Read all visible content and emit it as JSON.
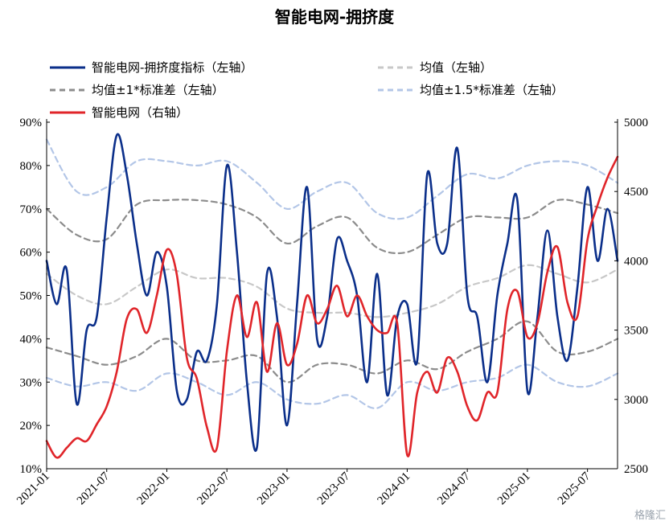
{
  "chart_data": {
    "type": "line",
    "title": "智能电网-拥挤度",
    "y_left": {
      "ticks": [
        "10%",
        "20%",
        "30%",
        "40%",
        "50%",
        "60%",
        "70%",
        "80%",
        "90%"
      ],
      "range": [
        10,
        90
      ]
    },
    "y_right": {
      "ticks": [
        "2500",
        "3000",
        "3500",
        "4000",
        "4500",
        "5000"
      ],
      "range": [
        2500,
        5000
      ]
    },
    "x_axis": {
      "ticks": [
        "2021-01",
        "2021-07",
        "2022-01",
        "2022-07",
        "2023-01",
        "2023-07",
        "2024-01",
        "2024-07",
        "2025-01",
        "2025-07"
      ],
      "start": "2021-01",
      "end": "2025-10"
    },
    "legend": [
      {
        "label": "智能电网-拥挤度指标（左轴）",
        "color": "#0b2f8a",
        "style": "solid"
      },
      {
        "label": "均值（左轴）",
        "color": "#c8c8c8",
        "style": "dashed"
      },
      {
        "label": "均值±1*标准差（左轴）",
        "color": "#8c8c8c",
        "style": "dashed"
      },
      {
        "label": "均值±1.5*标准差（左轴）",
        "color": "#b3c6e7",
        "style": "dashed"
      },
      {
        "label": "智能电网（右轴）",
        "color": "#e0252a",
        "style": "solid"
      }
    ],
    "series": [
      {
        "name": "智能电网-拥挤度指标（左轴）",
        "axis": "left",
        "color": "#0b2f8a",
        "x": [
          "2021-01",
          "2021-02",
          "2021-03",
          "2021-04",
          "2021-05",
          "2021-06",
          "2021-07",
          "2021-08",
          "2021-09",
          "2021-10",
          "2021-11",
          "2021-12",
          "2022-01",
          "2022-02",
          "2022-03",
          "2022-04",
          "2022-05",
          "2022-06",
          "2022-07",
          "2022-08",
          "2022-09",
          "2022-10",
          "2022-11",
          "2022-12",
          "2023-01",
          "2023-02",
          "2023-03",
          "2023-04",
          "2023-05",
          "2023-06",
          "2023-07",
          "2023-08",
          "2023-09",
          "2023-10",
          "2023-11",
          "2023-12",
          "2024-01",
          "2024-02",
          "2024-03",
          "2024-04",
          "2024-05",
          "2024-06",
          "2024-07",
          "2024-08",
          "2024-09",
          "2024-10",
          "2024-11",
          "2024-12",
          "2025-01",
          "2025-02",
          "2025-03",
          "2025-04",
          "2025-05",
          "2025-06",
          "2025-07",
          "2025-08",
          "2025-09",
          "2025-10"
        ],
        "values": [
          58,
          48,
          56,
          25,
          42,
          45,
          68,
          87,
          78,
          62,
          50,
          60,
          52,
          28,
          26,
          37,
          35,
          48,
          80,
          60,
          30,
          15,
          55,
          45,
          20,
          48,
          75,
          40,
          45,
          63,
          58,
          50,
          30,
          55,
          27,
          45,
          48,
          35,
          78,
          62,
          62,
          84,
          50,
          45,
          30,
          50,
          62,
          72,
          28,
          45,
          65,
          45,
          35,
          52,
          75,
          58,
          70,
          58
        ]
      },
      {
        "name": "均值（左轴）",
        "axis": "left",
        "color": "#c8c8c8",
        "x": [
          "2021-01",
          "2021-04",
          "2021-07",
          "2021-10",
          "2022-01",
          "2022-04",
          "2022-07",
          "2022-10",
          "2023-01",
          "2023-04",
          "2023-07",
          "2023-10",
          "2024-01",
          "2024-04",
          "2024-07",
          "2024-10",
          "2025-01",
          "2025-04",
          "2025-07",
          "2025-10"
        ],
        "values": [
          55,
          50,
          48,
          52,
          56,
          54,
          54,
          52,
          47,
          46,
          46,
          45,
          46,
          48,
          52,
          54,
          57,
          55,
          53,
          56
        ]
      },
      {
        "name": "均值+1*标准差（左轴）",
        "axis": "left",
        "color": "#8c8c8c",
        "x": [
          "2021-01",
          "2021-04",
          "2021-07",
          "2021-10",
          "2022-01",
          "2022-04",
          "2022-07",
          "2022-10",
          "2023-01",
          "2023-04",
          "2023-07",
          "2023-10",
          "2024-01",
          "2024-04",
          "2024-07",
          "2024-10",
          "2025-01",
          "2025-04",
          "2025-07",
          "2025-10"
        ],
        "values": [
          70,
          64,
          63,
          71,
          72,
          72,
          71,
          68,
          62,
          66,
          68,
          61,
          60,
          64,
          68,
          68,
          68,
          72,
          71,
          69
        ]
      },
      {
        "name": "均值-1*标准差（左轴）",
        "axis": "left",
        "color": "#8c8c8c",
        "x": [
          "2021-01",
          "2021-04",
          "2021-07",
          "2021-10",
          "2022-01",
          "2022-04",
          "2022-07",
          "2022-10",
          "2023-01",
          "2023-04",
          "2023-07",
          "2023-10",
          "2024-01",
          "2024-04",
          "2024-07",
          "2024-10",
          "2025-01",
          "2025-04",
          "2025-07",
          "2025-10"
        ],
        "values": [
          38,
          36,
          34,
          36,
          40,
          35,
          35,
          36,
          30,
          34,
          34,
          32,
          35,
          33,
          37,
          40,
          44,
          37,
          37,
          40
        ]
      },
      {
        "name": "均值+1.5*标准差（左轴）",
        "axis": "left",
        "color": "#b3c6e7",
        "x": [
          "2021-01",
          "2021-04",
          "2021-07",
          "2021-10",
          "2022-01",
          "2022-04",
          "2022-07",
          "2022-10",
          "2023-01",
          "2023-04",
          "2023-07",
          "2023-10",
          "2024-01",
          "2024-04",
          "2024-07",
          "2024-10",
          "2025-01",
          "2025-04",
          "2025-07",
          "2025-10"
        ],
        "values": [
          86,
          74,
          75,
          81,
          81,
          80,
          81,
          76,
          70,
          74,
          76,
          69,
          68,
          73,
          78,
          77,
          80,
          81,
          80,
          76
        ]
      },
      {
        "name": "均值-1.5*标准差（左轴）",
        "axis": "left",
        "color": "#b3c6e7",
        "x": [
          "2021-01",
          "2021-04",
          "2021-07",
          "2021-10",
          "2022-01",
          "2022-04",
          "2022-07",
          "2022-10",
          "2023-01",
          "2023-04",
          "2023-07",
          "2023-10",
          "2024-01",
          "2024-04",
          "2024-07",
          "2024-10",
          "2025-01",
          "2025-04",
          "2025-07",
          "2025-10"
        ],
        "values": [
          31,
          29,
          30,
          28,
          32,
          30,
          27,
          30,
          26,
          25,
          27,
          24,
          30,
          28,
          30,
          31,
          34,
          30,
          29,
          32
        ]
      },
      {
        "name": "智能电网（右轴）",
        "axis": "right",
        "color": "#e0252a",
        "x": [
          "2021-01",
          "2021-02",
          "2021-03",
          "2021-04",
          "2021-05",
          "2021-06",
          "2021-07",
          "2021-08",
          "2021-09",
          "2021-10",
          "2021-11",
          "2021-12",
          "2022-01",
          "2022-02",
          "2022-03",
          "2022-04",
          "2022-05",
          "2022-06",
          "2022-07",
          "2022-08",
          "2022-09",
          "2022-10",
          "2022-11",
          "2022-12",
          "2023-01",
          "2023-02",
          "2023-03",
          "2023-04",
          "2023-05",
          "2023-06",
          "2023-07",
          "2023-08",
          "2023-09",
          "2023-10",
          "2023-11",
          "2023-12",
          "2024-01",
          "2024-02",
          "2024-03",
          "2024-04",
          "2024-05",
          "2024-06",
          "2024-07",
          "2024-08",
          "2024-09",
          "2024-10",
          "2024-11",
          "2024-12",
          "2025-01",
          "2025-02",
          "2025-03",
          "2025-04",
          "2025-05",
          "2025-06",
          "2025-07",
          "2025-08",
          "2025-09",
          "2025-10"
        ],
        "values": [
          2700,
          2580,
          2650,
          2720,
          2700,
          2820,
          2950,
          3200,
          3580,
          3650,
          3480,
          3750,
          4080,
          3900,
          3300,
          3150,
          2800,
          2650,
          3350,
          3750,
          3450,
          3700,
          3200,
          3550,
          3250,
          3400,
          3750,
          3550,
          3650,
          3820,
          3600,
          3750,
          3600,
          3500,
          3480,
          3550,
          2600,
          3050,
          3200,
          3050,
          3300,
          3200,
          2950,
          2850,
          3050,
          3050,
          3650,
          3780,
          3450,
          3550,
          3920,
          4100,
          3700,
          3600,
          4150,
          4400,
          4600,
          4750
        ]
      }
    ]
  },
  "watermark": "格隆汇"
}
